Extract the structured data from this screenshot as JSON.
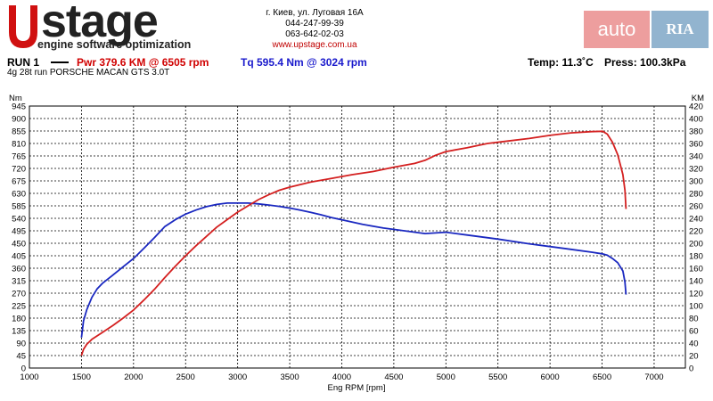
{
  "header": {
    "logo_text": "stage",
    "logo_tagline": "engine software optimization",
    "contact_address": "г. Киев, ул. Луговая 16А",
    "contact_phone1": "044-247-99-39",
    "contact_phone2": "063-642-02-03",
    "contact_website": "www.upstage.com.ua",
    "autoria_left": "auto",
    "autoria_right": "RIA"
  },
  "run": {
    "label": "RUN 1",
    "power_text": "Pwr  379.6 KM @ 6505 rpm",
    "torque_text": "Tq 595.4 Nm @ 3024 rpm",
    "temp_text": "Temp: 11.3˚C",
    "press_text": "Press: 100.3kPa",
    "subtitle": "4g 28t run PORSCHE MACAN GTS 3.0T"
  },
  "colors": {
    "power": "#d42020",
    "torque": "#1a28c0",
    "grid": "#000000"
  },
  "chart_data": {
    "type": "line",
    "xlabel": "Eng RPM [rpm]",
    "ylabel_left": "Nm",
    "ylabel_right": "KM",
    "xlim": [
      1000,
      7300
    ],
    "ylim_left": [
      0,
      945
    ],
    "ylim_right": [
      0,
      420
    ],
    "x_ticks": [
      1000,
      1500,
      2000,
      2500,
      3000,
      3500,
      4000,
      4500,
      5000,
      5500,
      6000,
      6500,
      7000
    ],
    "y_ticks_left": [
      0,
      45,
      90,
      135,
      180,
      225,
      270,
      315,
      360,
      405,
      450,
      495,
      540,
      585,
      630,
      675,
      720,
      765,
      810,
      855,
      900,
      945
    ],
    "y_ticks_right": [
      0,
      20,
      40,
      60,
      80,
      100,
      120,
      140,
      160,
      180,
      200,
      220,
      240,
      260,
      280,
      300,
      320,
      340,
      360,
      380,
      400,
      420
    ],
    "series": [
      {
        "name": "Tq",
        "axis": "left",
        "color": "#1a28c0",
        "x": [
          1500,
          1520,
          1550,
          1600,
          1650,
          1700,
          1800,
          1900,
          2000,
          2100,
          2200,
          2300,
          2400,
          2500,
          2600,
          2700,
          2800,
          2900,
          3000,
          3100,
          3200,
          3300,
          3400,
          3500,
          3600,
          3700,
          3800,
          3900,
          4000,
          4200,
          4400,
          4600,
          4800,
          5000,
          5200,
          5500,
          5800,
          6000,
          6200,
          6400,
          6500,
          6550,
          6600,
          6650,
          6700,
          6720,
          6730
        ],
        "y": [
          110,
          170,
          210,
          255,
          285,
          305,
          335,
          365,
          395,
          432,
          470,
          510,
          535,
          555,
          570,
          582,
          590,
          595,
          595,
          595,
          592,
          588,
          583,
          577,
          570,
          562,
          553,
          543,
          535,
          518,
          505,
          495,
          485,
          490,
          480,
          465,
          448,
          438,
          428,
          418,
          412,
          407,
          395,
          380,
          350,
          310,
          265
        ]
      },
      {
        "name": "Pwr",
        "axis": "right",
        "color": "#d42020",
        "x": [
          1500,
          1520,
          1550,
          1600,
          1700,
          1800,
          1900,
          2000,
          2100,
          2200,
          2300,
          2400,
          2500,
          2600,
          2700,
          2800,
          2900,
          3000,
          3100,
          3200,
          3300,
          3400,
          3500,
          3700,
          3900,
          4100,
          4300,
          4500,
          4700,
          4800,
          4900,
          5000,
          5200,
          5400,
          5600,
          5800,
          6000,
          6200,
          6400,
          6505,
          6550,
          6600,
          6650,
          6700,
          6720,
          6730
        ],
        "y": [
          20,
          30,
          38,
          46,
          57,
          68,
          80,
          93,
          109,
          126,
          145,
          163,
          180,
          196,
          211,
          226,
          238,
          250,
          260,
          270,
          278,
          285,
          290,
          298,
          304,
          310,
          315,
          322,
          328,
          333,
          341,
          347,
          353,
          360,
          364,
          368,
          373,
          377,
          379,
          379.6,
          375,
          362,
          342,
          310,
          285,
          255
        ]
      }
    ]
  }
}
